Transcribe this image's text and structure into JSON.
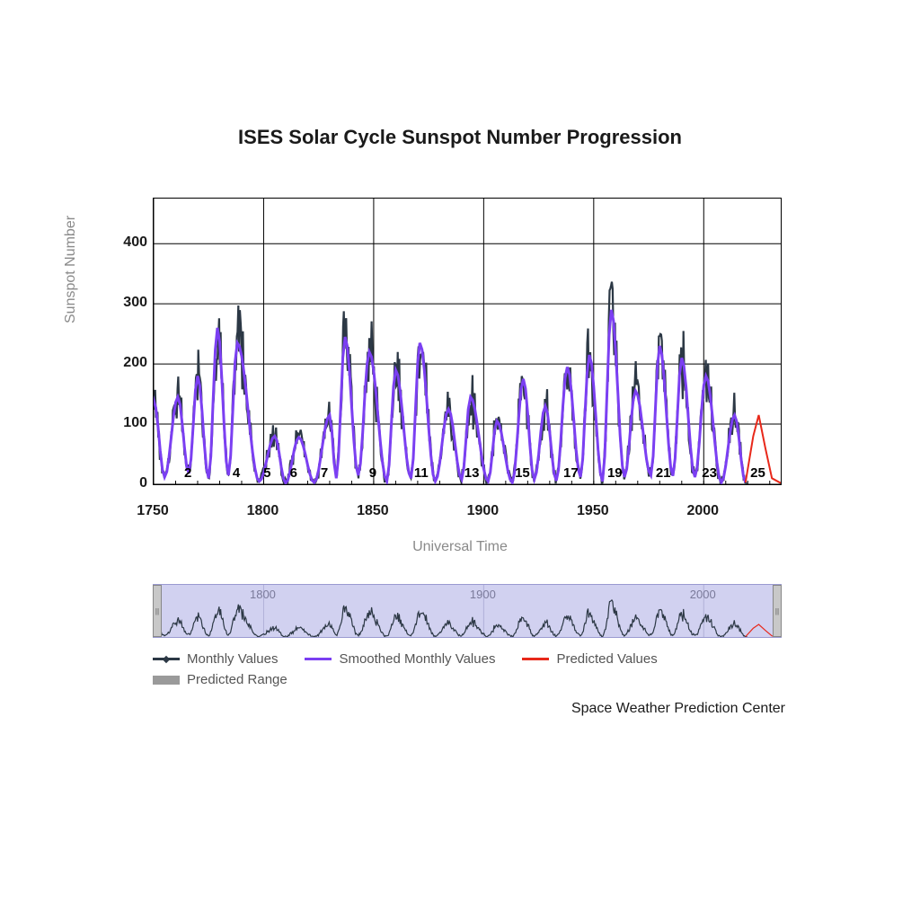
{
  "title": "ISES Solar Cycle Sunspot Number Progression",
  "y_axis_label": "Sunspot Number",
  "x_axis_label": "Universal Time",
  "footer": "Space Weather Prediction Center",
  "chart": {
    "type": "line",
    "xlim": [
      1750,
      2035
    ],
    "ylim": [
      0,
      475
    ],
    "x_ticks": [
      1750,
      1800,
      1850,
      1900,
      1950,
      2000
    ],
    "y_ticks": [
      0,
      100,
      200,
      300,
      400
    ],
    "grid_color": "#000000",
    "background_color": "#ffffff",
    "title_fontsize": 22,
    "label_fontsize": 16,
    "tick_fontsize": 16,
    "line_width_monthly": 2.2,
    "line_width_smoothed": 3.0,
    "line_width_predicted": 2.0,
    "marker_style_monthly": "diamond",
    "series_colors": {
      "monthly": "#2c3845",
      "smoothed": "#7b3ff2",
      "predicted": "#e8281a",
      "predicted_range": "#9a9a9a"
    },
    "cycle_labels": [
      {
        "n": 2,
        "x": 1766
      },
      {
        "n": 4,
        "x": 1788
      },
      {
        "n": 5,
        "x": 1802
      },
      {
        "n": 6,
        "x": 1814
      },
      {
        "n": 7,
        "x": 1828
      },
      {
        "n": 9,
        "x": 1850
      },
      {
        "n": 11,
        "x": 1872
      },
      {
        "n": 13,
        "x": 1895
      },
      {
        "n": 15,
        "x": 1918
      },
      {
        "n": 17,
        "x": 1940
      },
      {
        "n": 19,
        "x": 1960
      },
      {
        "n": 21,
        "x": 1982
      },
      {
        "n": 23,
        "x": 2003
      },
      {
        "n": 25,
        "x": 2025
      }
    ],
    "cycles_smoothed": [
      {
        "min_year": 1745,
        "min_val": 15,
        "peak_year": 1750,
        "peak_val": 140,
        "end_year": 1755,
        "end_val": 12
      },
      {
        "min_year": 1755,
        "min_val": 12,
        "peak_year": 1761,
        "peak_val": 145,
        "end_year": 1766,
        "end_val": 18
      },
      {
        "min_year": 1766,
        "min_val": 18,
        "peak_year": 1770,
        "peak_val": 180,
        "end_year": 1775,
        "end_val": 10
      },
      {
        "min_year": 1775,
        "min_val": 10,
        "peak_year": 1779,
        "peak_val": 260,
        "end_year": 1784,
        "end_val": 15
      },
      {
        "min_year": 1784,
        "min_val": 15,
        "peak_year": 1788,
        "peak_val": 235,
        "end_year": 1798,
        "end_val": 5
      },
      {
        "min_year": 1798,
        "min_val": 5,
        "peak_year": 1805,
        "peak_val": 80,
        "end_year": 1810,
        "end_val": 2
      },
      {
        "min_year": 1810,
        "min_val": 2,
        "peak_year": 1816,
        "peak_val": 78,
        "end_year": 1823,
        "end_val": 3
      },
      {
        "min_year": 1823,
        "min_val": 3,
        "peak_year": 1830,
        "peak_val": 115,
        "end_year": 1833,
        "end_val": 10
      },
      {
        "min_year": 1833,
        "min_val": 10,
        "peak_year": 1837,
        "peak_val": 245,
        "end_year": 1843,
        "end_val": 15
      },
      {
        "min_year": 1843,
        "min_val": 15,
        "peak_year": 1848,
        "peak_val": 220,
        "end_year": 1856,
        "end_val": 5
      },
      {
        "min_year": 1856,
        "min_val": 5,
        "peak_year": 1860,
        "peak_val": 190,
        "end_year": 1867,
        "end_val": 10
      },
      {
        "min_year": 1867,
        "min_val": 10,
        "peak_year": 1871,
        "peak_val": 235,
        "end_year": 1878,
        "end_val": 5
      },
      {
        "min_year": 1878,
        "min_val": 5,
        "peak_year": 1884,
        "peak_val": 125,
        "end_year": 1890,
        "end_val": 8
      },
      {
        "min_year": 1890,
        "min_val": 8,
        "peak_year": 1894,
        "peak_val": 145,
        "end_year": 1902,
        "end_val": 5
      },
      {
        "min_year": 1902,
        "min_val": 5,
        "peak_year": 1906,
        "peak_val": 105,
        "end_year": 1913,
        "end_val": 3
      },
      {
        "min_year": 1913,
        "min_val": 3,
        "peak_year": 1918,
        "peak_val": 175,
        "end_year": 1923,
        "end_val": 8
      },
      {
        "min_year": 1923,
        "min_val": 8,
        "peak_year": 1928,
        "peak_val": 130,
        "end_year": 1933,
        "end_val": 6
      },
      {
        "min_year": 1933,
        "min_val": 6,
        "peak_year": 1938,
        "peak_val": 195,
        "end_year": 1944,
        "end_val": 12
      },
      {
        "min_year": 1944,
        "min_val": 12,
        "peak_year": 1948,
        "peak_val": 215,
        "end_year": 1954,
        "end_val": 5
      },
      {
        "min_year": 1954,
        "min_val": 5,
        "peak_year": 1958,
        "peak_val": 290,
        "end_year": 1964,
        "end_val": 12
      },
      {
        "min_year": 1964,
        "min_val": 12,
        "peak_year": 1969,
        "peak_val": 155,
        "end_year": 1976,
        "end_val": 15
      },
      {
        "min_year": 1976,
        "min_val": 15,
        "peak_year": 1980,
        "peak_val": 230,
        "end_year": 1986,
        "end_val": 14
      },
      {
        "min_year": 1986,
        "min_val": 14,
        "peak_year": 1990,
        "peak_val": 210,
        "end_year": 1996,
        "end_val": 12
      },
      {
        "min_year": 1996,
        "min_val": 12,
        "peak_year": 2001,
        "peak_val": 180,
        "end_year": 2008,
        "end_val": 3
      },
      {
        "min_year": 2008,
        "min_val": 3,
        "peak_year": 2014,
        "peak_val": 115,
        "end_year": 2019,
        "end_val": 3
      }
    ],
    "monthly_noise_amplitude": 35,
    "monthly_peak_factor": 1.25,
    "predicted": [
      {
        "year": 2019,
        "val": 3
      },
      {
        "year": 2022.5,
        "val": 80
      },
      {
        "year": 2025,
        "val": 115
      },
      {
        "year": 2028,
        "val": 60
      },
      {
        "year": 2031,
        "val": 10
      },
      {
        "year": 2035,
        "val": 2
      }
    ]
  },
  "overview": {
    "background_color": "#d1d1f0",
    "border_color": "#9a9ad0",
    "x_ticks": [
      1800,
      1900,
      2000
    ],
    "handle_color": "#c8c8c8"
  },
  "legend": {
    "items": [
      {
        "key": "monthly",
        "label": "Monthly Values",
        "type": "line-dot"
      },
      {
        "key": "smoothed",
        "label": "Smoothed Monthly Values",
        "type": "line"
      },
      {
        "key": "predicted",
        "label": "Predicted Values",
        "type": "line"
      },
      {
        "key": "predicted_range",
        "label": "Predicted Range",
        "type": "box"
      }
    ]
  }
}
